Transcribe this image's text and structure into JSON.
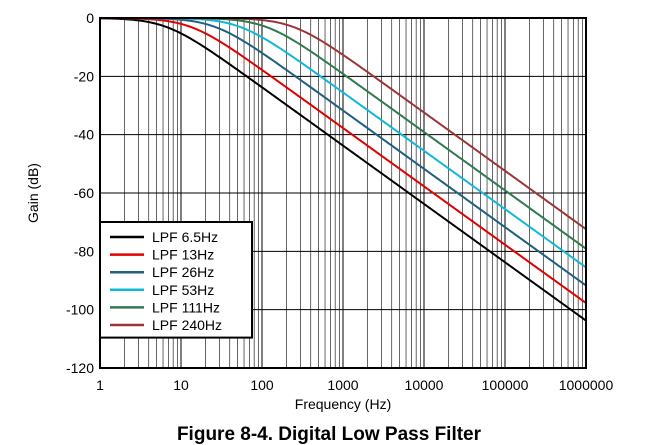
{
  "chart_data": {
    "type": "line",
    "title": "",
    "caption": "Figure 8-4. Digital Low Pass Filter",
    "xlabel": "Frequency (Hz)",
    "ylabel": "Gain (dB)",
    "xscale": "log",
    "xlim": [
      1,
      1000000
    ],
    "ylim": [
      -120,
      0
    ],
    "xticks": [
      "1",
      "10",
      "100",
      "1000",
      "10000",
      "100000",
      "1000000"
    ],
    "yticks": [
      "0",
      "-20",
      "-40",
      "-60",
      "-80",
      "-100",
      "-120"
    ],
    "grid": true,
    "legend_position": "bottom-left",
    "series": [
      {
        "name": "LPF 6.5Hz",
        "color": "#000000",
        "cutoff": 6.5,
        "x": [
          1,
          10,
          100,
          1000,
          10000,
          100000,
          1000000
        ],
        "y": [
          -0.5,
          -5,
          -23,
          -43,
          -63,
          -83,
          -103
        ]
      },
      {
        "name": "LPF 13Hz",
        "color": "#e00000",
        "cutoff": 13,
        "x": [
          1,
          10,
          100,
          1000,
          10000,
          100000,
          1000000
        ],
        "y": [
          0,
          -2,
          -18,
          -37,
          -57,
          -77,
          -97
        ]
      },
      {
        "name": "LPF 26Hz",
        "color": "#1f5f80",
        "cutoff": 26,
        "x": [
          1,
          10,
          100,
          1000,
          10000,
          100000,
          1000000
        ],
        "y": [
          0,
          -1,
          -12,
          -31,
          -51,
          -71,
          -91
        ]
      },
      {
        "name": "LPF 53Hz",
        "color": "#10b8d8",
        "cutoff": 53,
        "x": [
          1,
          10,
          100,
          1000,
          10000,
          100000,
          1000000
        ],
        "y": [
          0,
          0,
          -7,
          -25,
          -45,
          -65,
          -85
        ]
      },
      {
        "name": "LPF 111Hz",
        "color": "#2f7a4f",
        "cutoff": 111,
        "x": [
          1,
          10,
          100,
          1000,
          10000,
          100000,
          1000000
        ],
        "y": [
          0,
          0,
          -3,
          -19,
          -39,
          -59,
          -79
        ]
      },
      {
        "name": "LPF 240Hz",
        "color": "#9c3535",
        "cutoff": 240,
        "x": [
          1,
          10,
          100,
          1000,
          10000,
          100000,
          1000000
        ],
        "y": [
          0,
          0,
          -1,
          -12,
          -32,
          -52,
          -72
        ]
      }
    ]
  }
}
